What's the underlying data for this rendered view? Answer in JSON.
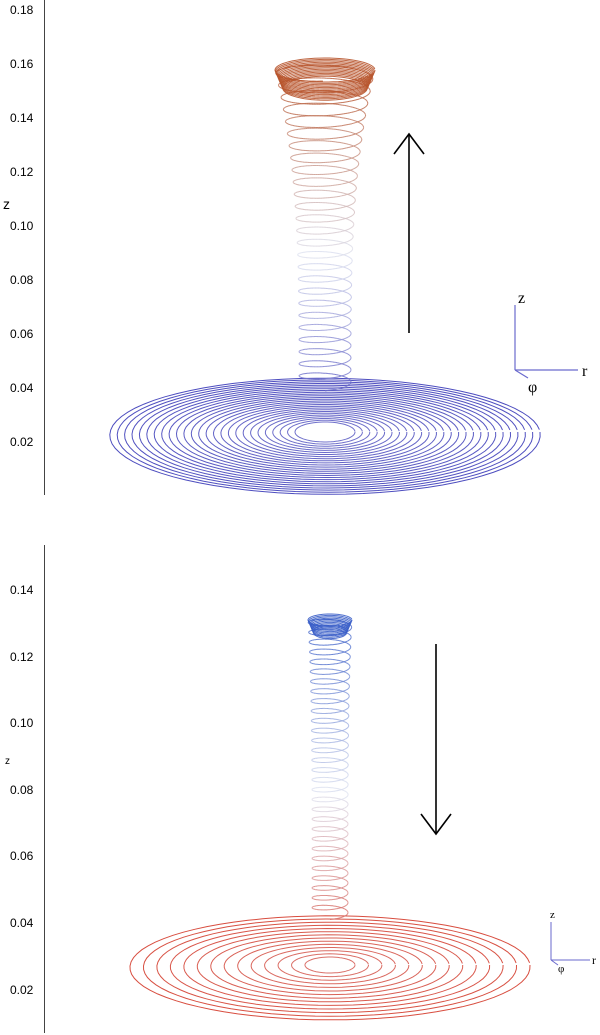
{
  "top": {
    "z_label": "z",
    "ticks": [
      "0.18",
      "0.16",
      "0.14",
      "0.12",
      "0.10",
      "0.08",
      "0.06",
      "0.04",
      "0.02"
    ],
    "triad": {
      "z": "z",
      "r": "r",
      "phi": "φ"
    },
    "arrow_direction": "up",
    "color_bottom": "#3a3ab8",
    "color_top": "#b8552e"
  },
  "bottom": {
    "z_label": "z",
    "ticks": [
      "0.14",
      "0.12",
      "0.10",
      "0.08",
      "0.06",
      "0.04",
      "0.02"
    ],
    "triad": {
      "z": "z",
      "r": "r",
      "phi": "φ"
    },
    "arrow_direction": "down",
    "color_bottom": "#d43a2a",
    "color_top": "#3a5ec8"
  }
}
